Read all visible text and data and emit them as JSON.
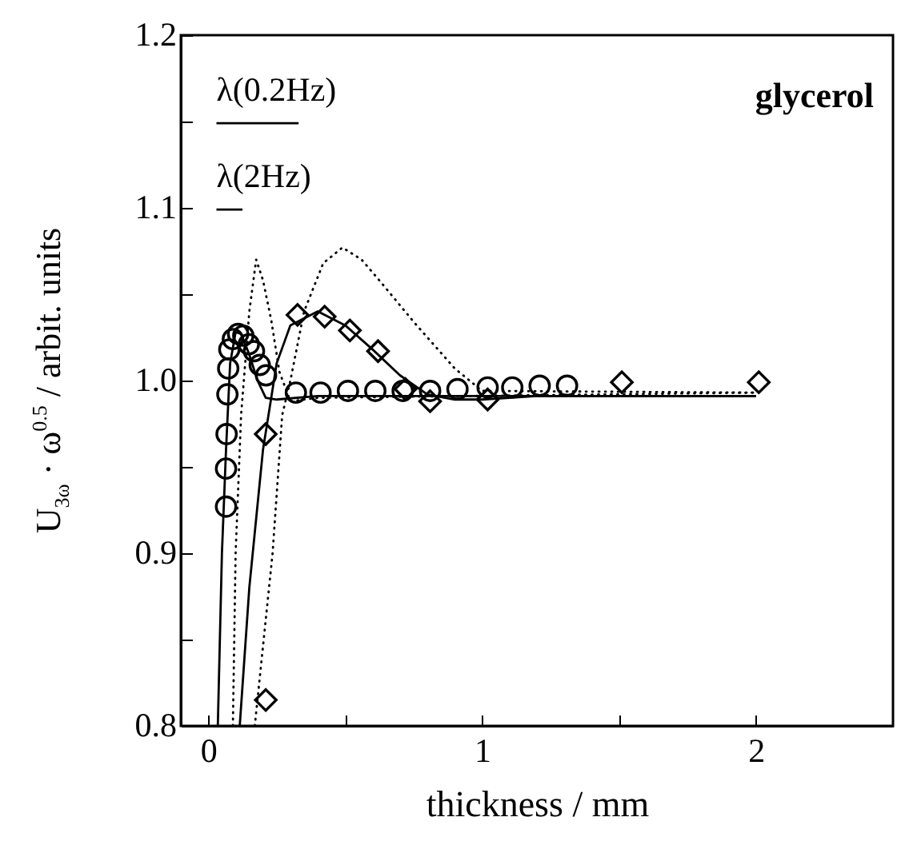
{
  "chart_data": {
    "type": "scatter",
    "xlabel": "thickness / mm",
    "ylabel": "U$_{3ω}$ · ω$^{0.5}$ / arbit. units",
    "xlim": [
      -0.1,
      2.5
    ],
    "ylim": [
      0.8,
      1.2
    ],
    "xticks": [
      0,
      {
        "value": 0.5,
        "label": null
      },
      1,
      {
        "value": 1.5,
        "label": null
      },
      2
    ],
    "yticks": [
      0.8,
      {
        "value": 0.85,
        "label": null
      },
      0.9,
      {
        "value": 0.95,
        "label": null
      },
      {
        "value": 1,
        "label": "1.0"
      },
      {
        "value": 1.05,
        "label": null
      },
      1.1,
      {
        "value": 1.15,
        "label": null
      },
      1.2
    ],
    "grid": false,
    "series": [
      {
        "marker": "circle",
        "color": "#000000",
        "x": [
          0.065,
          0.065,
          0.067,
          0.07,
          0.073,
          0.077,
          0.09,
          0.109,
          0.128,
          0.148,
          0.167,
          0.188,
          0.211,
          0.32,
          0.41,
          0.51,
          0.61,
          0.71,
          0.81,
          0.91,
          1.02,
          1.11,
          1.21,
          1.31
        ],
        "values": [
          0.927,
          0.949,
          0.969,
          0.992,
          1.007,
          1.018,
          1.024,
          1.027,
          1.026,
          1.021,
          1.017,
          1.009,
          1.003,
          0.993,
          0.993,
          0.994,
          0.994,
          0.994,
          0.994,
          0.995,
          0.996,
          0.996,
          0.997,
          0.997
        ]
      },
      {
        "marker": "diamond",
        "color": "#000000",
        "x": [
          0.21,
          0.21,
          0.326,
          0.425,
          0.517,
          0.62,
          0.72,
          0.81,
          1.02,
          1.51,
          2.01
        ],
        "values": [
          0.815,
          0.969,
          1.038,
          1.037,
          1.029,
          1.017,
          0.995,
          0.988,
          0.989,
          0.999,
          0.999
        ]
      },
      {
        "type": "line",
        "line_style": "solid",
        "color": "#000000",
        "x": [
          0.035,
          0.05,
          0.065,
          0.08,
          0.1,
          0.12,
          0.15,
          0.18,
          0.21,
          0.25,
          0.4,
          2.0
        ],
        "values": [
          0.8,
          0.9,
          0.96,
          1.01,
          1.028,
          1.027,
          1.015,
          1.0,
          0.99,
          0.989,
          0.991,
          0.991
        ]
      },
      {
        "type": "line",
        "line_style": "solid",
        "color": "#000000",
        "x": [
          0.115,
          0.15,
          0.2,
          0.25,
          0.3,
          0.4,
          0.5,
          0.6,
          0.7,
          0.8,
          0.9,
          1.0,
          1.2,
          2.0
        ],
        "values": [
          0.8,
          0.88,
          0.96,
          1.01,
          1.032,
          1.04,
          1.032,
          1.018,
          1.003,
          0.992,
          0.989,
          0.989,
          0.991,
          0.991
        ]
      },
      {
        "type": "line",
        "line_style": "dotted",
        "color": "#000000",
        "x": [
          0.09,
          0.1,
          0.12,
          0.15,
          0.175,
          0.2,
          0.23,
          0.26,
          0.3,
          0.4,
          2.0
        ],
        "values": [
          0.8,
          0.9,
          0.98,
          1.04,
          1.07,
          1.058,
          1.035,
          1.005,
          0.988,
          0.99,
          0.993
        ]
      },
      {
        "type": "line",
        "line_style": "dotted",
        "color": "#000000",
        "x": [
          0.17,
          0.235,
          0.27,
          0.3,
          0.35,
          0.42,
          0.49,
          0.56,
          0.63,
          0.75,
          0.9,
          1.0,
          2.0
        ],
        "values": [
          0.8,
          0.9,
          0.98,
          1.0,
          1.04,
          1.068,
          1.077,
          1.07,
          1.057,
          1.034,
          1.007,
          0.994,
          0.993
        ]
      },
      {
        "type": "line",
        "line_style": "solid",
        "color": "#000000",
        "x": [
          0.03,
          0.33
        ],
        "values": [
          1.149,
          1.149
        ]
      },
      {
        "type": "line",
        "line_style": "solid",
        "color": "#000000",
        "x": [
          0.03,
          0.125
        ],
        "values": [
          1.099,
          1.099
        ]
      }
    ],
    "annotations": [
      {
        "text": "λ(0.2Hz)",
        "x": 0.03,
        "y": 1.149
      },
      {
        "text": "λ(2Hz)",
        "x": 0.03,
        "y": 1.099
      },
      "glycerol"
    ]
  }
}
